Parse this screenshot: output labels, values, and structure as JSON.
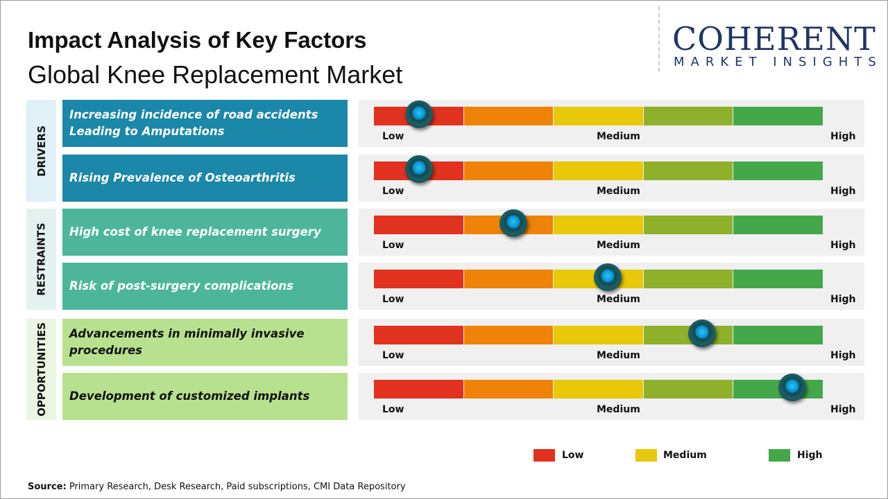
{
  "header": {
    "title": "Impact Analysis of Key Factors",
    "subtitle": "Global Knee Replacement Market"
  },
  "logo": {
    "line1": "COHERENT",
    "line2": "MARKET INSIGHTS"
  },
  "chart_data": {
    "type": "gauge",
    "scale": {
      "min": "Low",
      "mid": "Medium",
      "max": "High"
    },
    "segment_colors": [
      "#e0321e",
      "#ee8307",
      "#e7c80a",
      "#8fb02a",
      "#44a84a"
    ],
    "groups": [
      {
        "name": "DRIVERS",
        "color": "#1b87a9",
        "bg": "#dff0f7",
        "text_color": "#ffffff",
        "factors": [
          {
            "label": "Increasing incidence of road accidents Leading to Amputations",
            "impact": 0.1
          },
          {
            "label": "Rising Prevalence of Osteoarthritis",
            "impact": 0.1
          }
        ]
      },
      {
        "name": "RESTRAINTS",
        "color": "#4db69a",
        "bg": "#e3f2ee",
        "text_color": "#ffffff",
        "factors": [
          {
            "label": "High cost of knee replacement surgery",
            "impact": 0.31
          },
          {
            "label": "Risk of post-surgery complications",
            "impact": 0.52
          }
        ]
      },
      {
        "name": "OPPORTUNITIES",
        "color": "#b7e18e",
        "bg": "#ebf6e2",
        "text_color": "#111111",
        "factors": [
          {
            "label": "Advancements in minimally invasive procedures",
            "impact": 0.73
          },
          {
            "label": "Development of customized implants",
            "impact": 0.93
          }
        ]
      }
    ],
    "legend": [
      {
        "label": "Low",
        "color": "#e0321e"
      },
      {
        "label": "Medium",
        "color": "#e7c80a"
      },
      {
        "label": "High",
        "color": "#44a84a"
      }
    ]
  },
  "source": {
    "label": "Source:",
    "text": " Primary Research, Desk Research, Paid subscriptions, CMI Data Repository"
  }
}
